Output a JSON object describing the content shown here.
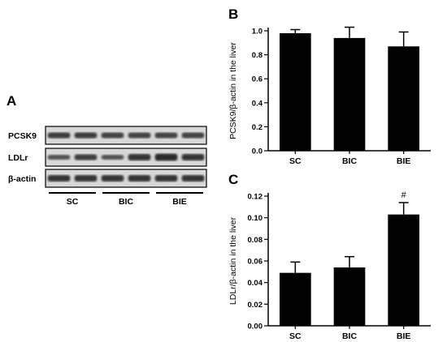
{
  "panel_a": {
    "letter": "A",
    "bands": [
      {
        "label": "PCSK9",
        "intensities": [
          0.75,
          0.75,
          0.7,
          0.7,
          0.7,
          0.7
        ]
      },
      {
        "label": "LDLr",
        "intensities": [
          0.55,
          0.75,
          0.55,
          0.85,
          0.95,
          0.85
        ]
      },
      {
        "label": "β-actin",
        "intensities": [
          0.85,
          0.85,
          0.85,
          0.85,
          0.85,
          0.85
        ]
      }
    ],
    "groups": [
      "SC",
      "BIC",
      "BIE"
    ]
  },
  "chart_data": [
    {
      "type": "bar",
      "panel": "B",
      "categories": [
        "SC",
        "BIC",
        "BIE"
      ],
      "values": [
        0.98,
        0.94,
        0.87
      ],
      "errors": [
        0.03,
        0.09,
        0.12
      ],
      "ylabel": "PCSK9/β-actin in the liver",
      "ylim": [
        0,
        1.0
      ],
      "yticks": [
        "0.0",
        "0.2",
        "0.4",
        "0.6",
        "0.8",
        "1.0"
      ],
      "annotations": [
        "",
        "",
        ""
      ]
    },
    {
      "type": "bar",
      "panel": "C",
      "categories": [
        "SC",
        "BIC",
        "BIE"
      ],
      "values": [
        0.049,
        0.054,
        0.103
      ],
      "errors": [
        0.01,
        0.01,
        0.011
      ],
      "ylabel": "LDLr/β-actin in the liver",
      "ylim": [
        0,
        0.12
      ],
      "yticks": [
        "0.00",
        "0.02",
        "0.04",
        "0.06",
        "0.08",
        "0.10",
        "0.12"
      ],
      "annotations": [
        "",
        "",
        "#"
      ]
    }
  ],
  "colors": {
    "bar": "#000000",
    "blot_bg": "#d8d8d8",
    "band": "#1a1a1a"
  }
}
